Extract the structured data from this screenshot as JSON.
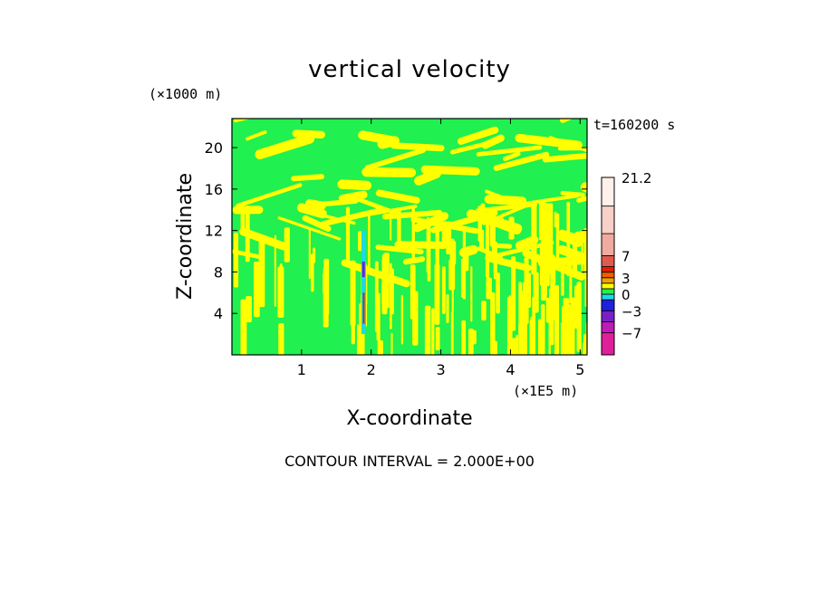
{
  "chart_data": {
    "type": "heatmap",
    "title": "vertical velocity",
    "xlabel": "X-coordinate",
    "ylabel": "Z-coordinate",
    "x_unit": "(×1E5 m)",
    "y_unit": "(×1000 m)",
    "time_label": "t=160200 s",
    "footer": "CONTOUR INTERVAL = 2.000E+00",
    "xlim": [
      0,
      5.1
    ],
    "ylim": [
      0,
      22.8
    ],
    "x_ticks": [
      {
        "value": 1,
        "label": "1"
      },
      {
        "value": 2,
        "label": "2"
      },
      {
        "value": 3,
        "label": "3"
      },
      {
        "value": 4,
        "label": "4"
      },
      {
        "value": 5,
        "label": "5"
      }
    ],
    "y_ticks": [
      {
        "value": 4,
        "label": "4"
      },
      {
        "value": 8,
        "label": "8"
      },
      {
        "value": 12,
        "label": "12"
      },
      {
        "value": 16,
        "label": "16"
      },
      {
        "value": 20,
        "label": "20"
      }
    ],
    "colorbar": {
      "levels": [
        {
          "color": "#e0209a",
          "range": [
            -11,
            -7
          ]
        },
        {
          "color": "#c01ab8",
          "range": [
            -7,
            -5
          ]
        },
        {
          "color": "#7a1fc8",
          "range": [
            -5,
            -3
          ]
        },
        {
          "color": "#2020e0",
          "range": [
            -3,
            -1
          ]
        },
        {
          "color": "#20d8e0",
          "range": [
            -1,
            0
          ]
        },
        {
          "color": "#20f050",
          "range": [
            0,
            1
          ]
        },
        {
          "color": "#ffff00",
          "range": [
            1,
            2
          ]
        },
        {
          "color": "#f0a000",
          "range": [
            2,
            3
          ]
        },
        {
          "color": "#f06000",
          "range": [
            3,
            4
          ]
        },
        {
          "color": "#e02000",
          "range": [
            4,
            5
          ]
        },
        {
          "color": "#e05a50",
          "range": [
            5,
            7
          ]
        },
        {
          "color": "#f0aaa0",
          "range": [
            7,
            11
          ]
        },
        {
          "color": "#f8d0c8",
          "range": [
            11,
            16
          ]
        },
        {
          "color": "#fff0ea",
          "range": [
            16,
            21.2
          ]
        }
      ],
      "labels": [
        "21.2",
        "7",
        "3",
        "0",
        "-3",
        "-7"
      ]
    },
    "dominant_colors": {
      "background": "#20f050",
      "positive_region": "#ffff00"
    }
  }
}
